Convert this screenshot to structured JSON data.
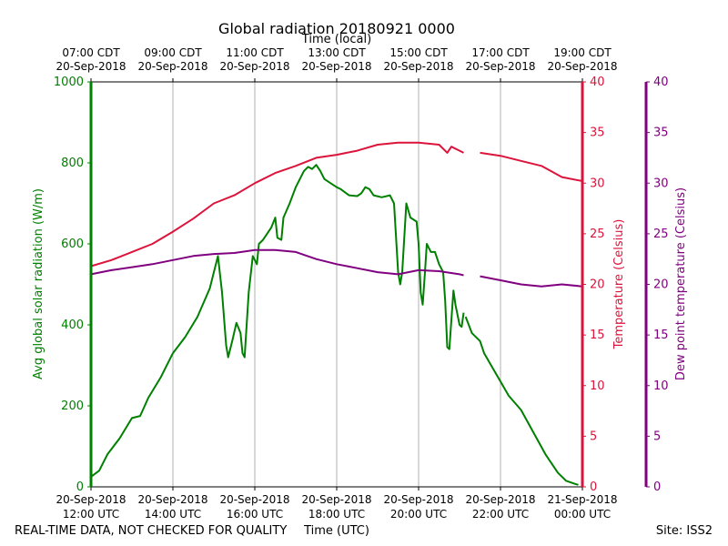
{
  "chart_data": {
    "type": "line",
    "title": "Global radiation 20180921 0000",
    "top_axis_label": "Time (local)",
    "xlabel": "Time (UTC)",
    "footer_left": "REAL-TIME DATA, NOT CHECKED FOR QUALITY",
    "footer_right": "Site: ISS2",
    "x_range_hours_utc": [
      12,
      24
    ],
    "grid": "vertical",
    "bottom_ticks": [
      {
        "h": 12,
        "date": "20-Sep-2018",
        "time": "12:00 UTC"
      },
      {
        "h": 14,
        "date": "20-Sep-2018",
        "time": "14:00 UTC"
      },
      {
        "h": 16,
        "date": "20-Sep-2018",
        "time": "16:00 UTC"
      },
      {
        "h": 18,
        "date": "20-Sep-2018",
        "time": "18:00 UTC"
      },
      {
        "h": 20,
        "date": "20-Sep-2018",
        "time": "20:00 UTC"
      },
      {
        "h": 22,
        "date": "20-Sep-2018",
        "time": "22:00 UTC"
      },
      {
        "h": 24,
        "date": "21-Sep-2018",
        "time": "00:00 UTC"
      }
    ],
    "top_ticks": [
      {
        "h": 12,
        "time": "07:00 CDT",
        "date": "20-Sep-2018"
      },
      {
        "h": 14,
        "time": "09:00 CDT",
        "date": "20-Sep-2018"
      },
      {
        "h": 16,
        "time": "11:00 CDT",
        "date": "20-Sep-2018"
      },
      {
        "h": 18,
        "time": "13:00 CDT",
        "date": "20-Sep-2018"
      },
      {
        "h": 20,
        "time": "15:00 CDT",
        "date": "20-Sep-2018"
      },
      {
        "h": 22,
        "time": "17:00 CDT",
        "date": "20-Sep-2018"
      },
      {
        "h": 24,
        "time": "19:00 CDT",
        "date": "20-Sep-2018"
      }
    ],
    "axes": {
      "radiation": {
        "label": "Avg global solar radiation (W/m)",
        "ylim": [
          0,
          1000
        ],
        "ticks": [
          0,
          200,
          400,
          600,
          800,
          1000
        ],
        "color": "#008000"
      },
      "temperature": {
        "label": "Temperature (Celsius)",
        "ylim": [
          0,
          40
        ],
        "ticks": [
          0,
          5,
          10,
          15,
          20,
          25,
          30,
          35,
          40
        ],
        "color": "#dc143c"
      },
      "dewpoint": {
        "label": "Dew point temperature (Celsius)",
        "ylim": [
          0,
          40
        ],
        "ticks": [
          0,
          5,
          10,
          15,
          20,
          25,
          30,
          35,
          40
        ],
        "color": "#800080"
      }
    },
    "series": [
      {
        "name": "Avg global solar radiation",
        "axis": "radiation",
        "color": "#008000",
        "segments": [
          [
            [
              12.0,
              25
            ],
            [
              12.2,
              40
            ],
            [
              12.4,
              80
            ],
            [
              12.7,
              120
            ],
            [
              13.0,
              170
            ],
            [
              13.2,
              175
            ],
            [
              13.4,
              220
            ],
            [
              13.7,
              270
            ],
            [
              14.0,
              330
            ],
            [
              14.3,
              370
            ],
            [
              14.6,
              420
            ],
            [
              14.9,
              490
            ],
            [
              15.0,
              530
            ],
            [
              15.1,
              570
            ],
            [
              15.2,
              480
            ],
            [
              15.3,
              350
            ],
            [
              15.35,
              320
            ],
            [
              15.45,
              360
            ],
            [
              15.55,
              405
            ],
            [
              15.65,
              380
            ],
            [
              15.7,
              330
            ],
            [
              15.75,
              320
            ],
            [
              15.85,
              480
            ],
            [
              15.95,
              570
            ],
            [
              16.05,
              550
            ],
            [
              16.1,
              600
            ],
            [
              16.2,
              610
            ],
            [
              16.4,
              640
            ],
            [
              16.5,
              665
            ],
            [
              16.55,
              615
            ],
            [
              16.65,
              610
            ],
            [
              16.7,
              665
            ],
            [
              16.85,
              700
            ],
            [
              17.0,
              740
            ],
            [
              17.2,
              780
            ],
            [
              17.3,
              790
            ],
            [
              17.4,
              785
            ],
            [
              17.5,
              795
            ],
            [
              17.6,
              780
            ],
            [
              17.7,
              760
            ],
            [
              17.85,
              750
            ],
            [
              18.0,
              740
            ],
            [
              18.1,
              735
            ],
            [
              18.3,
              720
            ],
            [
              18.5,
              718
            ],
            [
              18.6,
              725
            ],
            [
              18.7,
              740
            ],
            [
              18.8,
              735
            ],
            [
              18.9,
              720
            ],
            [
              19.1,
              715
            ],
            [
              19.3,
              720
            ],
            [
              19.4,
              700
            ],
            [
              19.5,
              530
            ],
            [
              19.55,
              500
            ],
            [
              19.6,
              530
            ],
            [
              19.7,
              700
            ],
            [
              19.8,
              665
            ],
            [
              19.95,
              655
            ],
            [
              20.0,
              600
            ],
            [
              20.05,
              480
            ],
            [
              20.1,
              450
            ],
            [
              20.15,
              520
            ],
            [
              20.2,
              600
            ],
            [
              20.3,
              580
            ],
            [
              20.4,
              580
            ],
            [
              20.5,
              550
            ],
            [
              20.6,
              530
            ],
            [
              20.65,
              460
            ],
            [
              20.7,
              345
            ],
            [
              20.75,
              340
            ],
            [
              20.85,
              485
            ],
            [
              20.9,
              450
            ],
            [
              21.0,
              400
            ],
            [
              21.05,
              395
            ],
            [
              21.1,
              430
            ]
          ],
          [
            [
              21.15,
              420
            ],
            [
              21.3,
              380
            ],
            [
              21.5,
              360
            ],
            [
              21.6,
              330
            ],
            [
              21.8,
              295
            ],
            [
              22.0,
              260
            ],
            [
              22.2,
              225
            ],
            [
              22.5,
              190
            ],
            [
              22.8,
              135
            ],
            [
              23.1,
              80
            ],
            [
              23.4,
              35
            ],
            [
              23.6,
              15
            ],
            [
              23.8,
              8
            ],
            [
              23.9,
              5
            ]
          ]
        ]
      },
      {
        "name": "Temperature",
        "axis": "temperature",
        "color": "#dc143c",
        "segments": [
          [
            [
              12.0,
              21.8
            ],
            [
              12.5,
              22.4
            ],
            [
              13.0,
              23.2
            ],
            [
              13.5,
              24.0
            ],
            [
              14.0,
              25.2
            ],
            [
              14.5,
              26.5
            ],
            [
              15.0,
              28.0
            ],
            [
              15.5,
              28.8
            ],
            [
              16.0,
              30.0
            ],
            [
              16.5,
              31.0
            ],
            [
              17.0,
              31.7
            ],
            [
              17.5,
              32.5
            ],
            [
              18.0,
              32.8
            ],
            [
              18.5,
              33.2
            ],
            [
              19.0,
              33.8
            ],
            [
              19.5,
              34.0
            ],
            [
              20.0,
              34.0
            ],
            [
              20.5,
              33.8
            ],
            [
              20.7,
              33.0
            ],
            [
              20.8,
              33.6
            ],
            [
              21.0,
              33.2
            ],
            [
              21.1,
              33.0
            ]
          ],
          [
            [
              21.5,
              33.0
            ],
            [
              22.0,
              32.7
            ],
            [
              22.5,
              32.2
            ],
            [
              23.0,
              31.7
            ],
            [
              23.5,
              30.6
            ],
            [
              24.0,
              30.2
            ]
          ]
        ]
      },
      {
        "name": "Dew point temperature",
        "axis": "dewpoint",
        "color": "#800080",
        "segments": [
          [
            [
              12.0,
              21.0
            ],
            [
              12.5,
              21.4
            ],
            [
              13.0,
              21.7
            ],
            [
              13.5,
              22.0
            ],
            [
              14.0,
              22.4
            ],
            [
              14.5,
              22.8
            ],
            [
              15.0,
              23.0
            ],
            [
              15.5,
              23.1
            ],
            [
              16.0,
              23.4
            ],
            [
              16.5,
              23.4
            ],
            [
              17.0,
              23.2
            ],
            [
              17.5,
              22.5
            ],
            [
              18.0,
              22.0
            ],
            [
              18.5,
              21.6
            ],
            [
              19.0,
              21.2
            ],
            [
              19.5,
              21.0
            ],
            [
              20.0,
              21.4
            ],
            [
              20.5,
              21.3
            ],
            [
              21.0,
              21.0
            ],
            [
              21.1,
              20.9
            ]
          ],
          [
            [
              21.5,
              20.8
            ],
            [
              22.0,
              20.4
            ],
            [
              22.5,
              20.0
            ],
            [
              23.0,
              19.8
            ],
            [
              23.5,
              20.0
            ],
            [
              24.0,
              19.8
            ]
          ]
        ]
      }
    ]
  }
}
